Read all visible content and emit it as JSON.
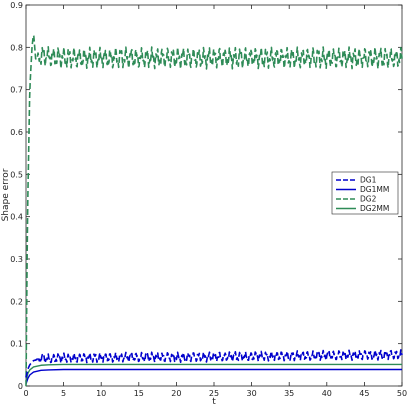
{
  "chart_data": {
    "type": "line",
    "title": "",
    "xlabel": "t",
    "ylabel": "Shape error",
    "xlim": [
      0,
      50
    ],
    "ylim": [
      0,
      0.9
    ],
    "x_ticks": [
      0,
      5,
      10,
      15,
      20,
      25,
      30,
      35,
      40,
      45,
      50
    ],
    "y_ticks": [
      0,
      0.1,
      0.2,
      0.3,
      0.4,
      0.5,
      0.6,
      0.7,
      0.8,
      0.9
    ],
    "grid": false,
    "legend_position": "right, middle",
    "series": [
      {
        "name": "DG1",
        "color": "#0000cc",
        "dash": "dashed",
        "shape": "rises from about 0.02 at t=0 to oscillate between roughly 0.05 and 0.085 for t > 1",
        "x": [
          0,
          0.25,
          0.5,
          1,
          2,
          3,
          5,
          10,
          15,
          20,
          25,
          30,
          35,
          40,
          45,
          50
        ],
        "y": [
          0.02,
          0.04,
          0.05,
          0.06,
          0.065,
          0.065,
          0.066,
          0.067,
          0.068,
          0.068,
          0.069,
          0.07,
          0.071,
          0.072,
          0.073,
          0.074
        ]
      },
      {
        "name": "DG1MM",
        "color": "#0000cc",
        "dash": "solid",
        "x": [
          0,
          0.25,
          0.5,
          1,
          2,
          3,
          5,
          10,
          20,
          30,
          40,
          50
        ],
        "y": [
          0.005,
          0.018,
          0.026,
          0.033,
          0.037,
          0.038,
          0.039,
          0.039,
          0.039,
          0.039,
          0.039,
          0.039
        ]
      },
      {
        "name": "DG2",
        "color": "#2e8b57",
        "dash": "dashed",
        "shape": "jumps from 0 to a peak of about 0.83 near t=1, then oscillates between roughly 0.74 and 0.81",
        "x": [
          0,
          0.2,
          0.5,
          0.8,
          1.0,
          1.3,
          2,
          5,
          10,
          20,
          30,
          40,
          50
        ],
        "y": [
          0.0,
          0.4,
          0.7,
          0.8,
          0.835,
          0.77,
          0.78,
          0.775,
          0.775,
          0.775,
          0.775,
          0.775,
          0.775
        ]
      },
      {
        "name": "DG2MM",
        "color": "#2e8b57",
        "dash": "solid",
        "x": [
          0,
          0.25,
          0.5,
          1,
          2,
          3,
          5,
          10,
          20,
          30,
          40,
          50
        ],
        "y": [
          0.01,
          0.03,
          0.038,
          0.045,
          0.049,
          0.05,
          0.051,
          0.051,
          0.051,
          0.051,
          0.051,
          0.051
        ]
      }
    ]
  }
}
